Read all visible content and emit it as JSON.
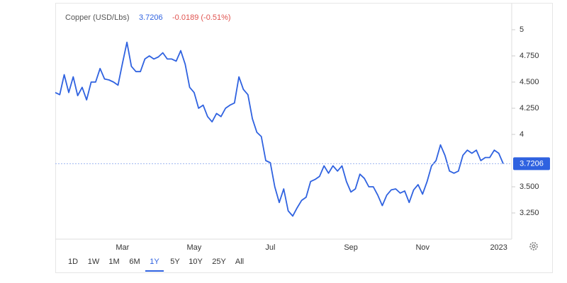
{
  "chart_data": {
    "type": "line",
    "series": [
      {
        "name": "Copper (USD/Lbs)",
        "color": "#2f62e0",
        "values": [
          4.4,
          4.38,
          4.57,
          4.4,
          4.55,
          4.37,
          4.45,
          4.33,
          4.5,
          4.5,
          4.63,
          4.53,
          4.52,
          4.5,
          4.47,
          4.68,
          4.88,
          4.65,
          4.6,
          4.6,
          4.72,
          4.75,
          4.72,
          4.74,
          4.78,
          4.72,
          4.72,
          4.7,
          4.8,
          4.67,
          4.45,
          4.4,
          4.25,
          4.28,
          4.17,
          4.12,
          4.2,
          4.17,
          4.25,
          4.28,
          4.3,
          4.55,
          4.43,
          4.38,
          4.15,
          4.02,
          3.98,
          3.75,
          3.73,
          3.5,
          3.35,
          3.48,
          3.27,
          3.22,
          3.3,
          3.37,
          3.4,
          3.55,
          3.57,
          3.6,
          3.7,
          3.63,
          3.7,
          3.65,
          3.7,
          3.55,
          3.45,
          3.48,
          3.62,
          3.58,
          3.5,
          3.5,
          3.42,
          3.32,
          3.42,
          3.47,
          3.48,
          3.44,
          3.46,
          3.35,
          3.47,
          3.52,
          3.43,
          3.55,
          3.7,
          3.75,
          3.9,
          3.8,
          3.65,
          3.63,
          3.65,
          3.8,
          3.85,
          3.82,
          3.85,
          3.75,
          3.78,
          3.78,
          3.85,
          3.82,
          3.7206
        ]
      }
    ],
    "change_label": "-0.0189 (-0.51%)",
    "categories": [
      null,
      null,
      null,
      null,
      null,
      null,
      null,
      null,
      null,
      null,
      null,
      null,
      null,
      null,
      null,
      "Mar",
      null,
      null,
      null,
      null,
      null,
      null,
      null,
      null,
      null,
      null,
      null,
      null,
      null,
      null,
      null,
      "May",
      null,
      null,
      null,
      null,
      null,
      null,
      null,
      null,
      null,
      null,
      null,
      null,
      null,
      null,
      null,
      null,
      "Jul",
      null,
      null,
      null,
      null,
      null,
      null,
      null,
      null,
      null,
      null,
      null,
      null,
      null,
      null,
      null,
      null,
      null,
      "Sep",
      null,
      null,
      null,
      null,
      null,
      null,
      null,
      null,
      null,
      null,
      null,
      null,
      null,
      null,
      null,
      "Nov",
      null,
      null,
      null,
      null,
      null,
      null,
      null,
      null,
      null,
      null,
      null,
      null,
      null,
      null,
      null,
      null,
      "2023",
      null
    ],
    "ylim": [
      3.0,
      5.2
    ],
    "yticks": [
      5,
      {
        "value": 4.75,
        "label": "4.750"
      },
      {
        "value": 4.5,
        "label": "4.500"
      },
      {
        "value": 4.25,
        "label": "4.250"
      },
      4,
      {
        "value": 3.5,
        "label": "3.500"
      },
      {
        "value": 3.25,
        "label": "3.250"
      }
    ],
    "grid": false
  },
  "ui": {
    "ranges": [
      "1D",
      "1W",
      "1M",
      "6M",
      "1Y",
      "5Y",
      "10Y",
      "25Y",
      "All"
    ],
    "selected": 4
  }
}
